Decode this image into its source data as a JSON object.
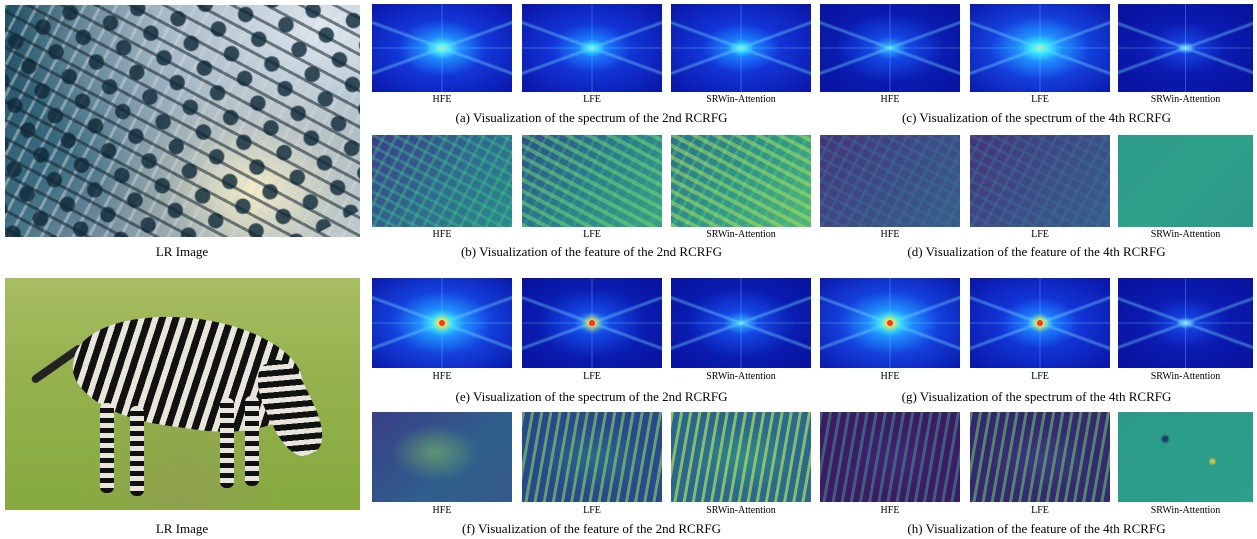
{
  "lr_label": "LR Image",
  "panel_labels": [
    "HFE",
    "LFE",
    "SRWin-Attention"
  ],
  "captions": {
    "a": "(a) Visualization of the spectrum of the 2nd RCRFG",
    "b": "(b) Visualization of the feature of the 2nd RCRFG",
    "c": "(c) Visualization of the spectrum of the 4th RCRFG",
    "d": "(d) Visualization of the feature of the 4th RCRFG",
    "e": "(e) Visualization of the spectrum of the 2nd RCRFG",
    "f": "(f) Visualization of the feature of the 2nd RCRFG",
    "g": "(g) Visualization of the spectrum of the 4th RCRFG",
    "h": "(h) Visualization of the feature of the 4th RCRFG"
  }
}
